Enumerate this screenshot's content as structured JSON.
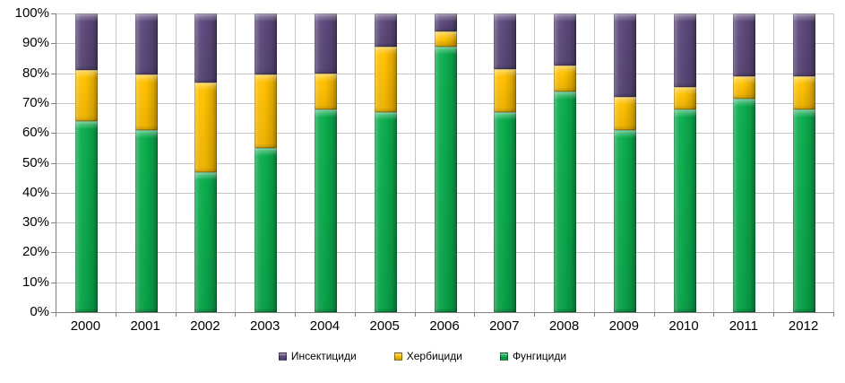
{
  "chart_data": {
    "type": "bar",
    "stacked": true,
    "percent_stacked": true,
    "title": "",
    "categories": [
      "2000",
      "2001",
      "2002",
      "2003",
      "2004",
      "2005",
      "2006",
      "2007",
      "2008",
      "2009",
      "2010",
      "2011",
      "2012"
    ],
    "series": [
      {
        "name": "Фунгициди",
        "color": "#0CAD4E",
        "values": [
          64,
          61,
          47,
          55,
          68,
          67,
          89,
          67,
          74,
          61,
          68,
          71.5,
          68
        ]
      },
      {
        "name": "Хербициди",
        "color": "#FFC000",
        "values": [
          17,
          18.5,
          30,
          24.5,
          12,
          22,
          5,
          14.5,
          8.5,
          11,
          7.5,
          7.5,
          11
        ]
      },
      {
        "name": "Инсектициди",
        "color": "#5E4A7D",
        "values": [
          19,
          20.5,
          23,
          20.5,
          20,
          11,
          6,
          18.5,
          17.5,
          28,
          24.5,
          21,
          21
        ]
      }
    ],
    "legend": {
      "position": "bottom",
      "items": [
        {
          "label": "Инсектициди",
          "color": "#5E4A7D"
        },
        {
          "label": "Хербициди",
          "color": "#FFC000"
        },
        {
          "label": "Фунгициди",
          "color": "#0CAD4E"
        }
      ]
    },
    "y_axis": {
      "min": 0,
      "max": 100,
      "step": 10,
      "tick_labels": [
        "0%",
        "10%",
        "20%",
        "30%",
        "40%",
        "50%",
        "60%",
        "70%",
        "80%",
        "90%",
        "100%"
      ]
    },
    "grid": {
      "horizontal": true,
      "vertical": true,
      "color": "#C6C6C6"
    },
    "axis_color": "#808080",
    "background": "#FFFFFF"
  }
}
